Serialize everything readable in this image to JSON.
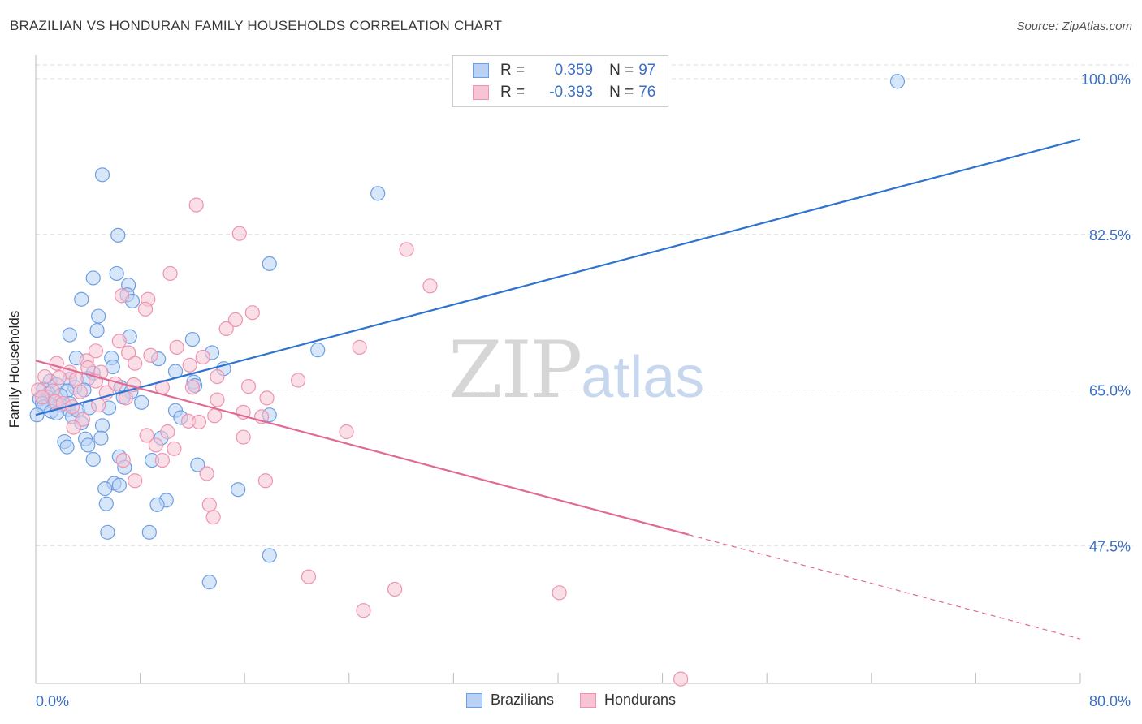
{
  "header": {
    "title": "BRAZILIAN VS HONDURAN FAMILY HOUSEHOLDS CORRELATION CHART",
    "source": "Source: ZipAtlas.com"
  },
  "watermark": {
    "zip": "ZIP",
    "atlas": "atlas"
  },
  "legend": {
    "rows": [
      {
        "r_label": "R =",
        "r_value": "0.359",
        "n_label": "N =",
        "n_value": "97",
        "color": "#6fa3e6"
      },
      {
        "r_label": "R =",
        "r_value": "-0.393",
        "n_label": "N =",
        "n_value": "76",
        "color": "#f08bab"
      }
    ]
  },
  "colors": {
    "blue_fill": "#b8d1f5",
    "blue_stroke": "#6c9fe3",
    "blue_line": "#2f73cf",
    "pink_fill": "#f8c4d4",
    "pink_stroke": "#ee93b1",
    "pink_line": "#e06a93",
    "tick_label": "#3a6fc4",
    "grid": "#dcdcdc"
  },
  "chart_data": {
    "type": "scatter",
    "ylabel": "Family Households",
    "xlim": [
      0,
      80
    ],
    "ylim": [
      33,
      101.5
    ],
    "x_tick_labels": [
      "0.0%",
      "80.0%"
    ],
    "y_ticks": [
      47.5,
      65.0,
      82.5,
      100.0
    ],
    "y_tick_labels": [
      "47.5%",
      "65.0%",
      "82.5%",
      "100.0%"
    ],
    "grid": "horizontal dashed",
    "legend_position": "top-center",
    "series": [
      {
        "name": "Brazilians",
        "r": 0.359,
        "n": 97,
        "trend": {
          "x": [
            0,
            80
          ],
          "y": [
            62.2,
            93.2
          ],
          "dashed_from": null
        },
        "points": [
          [
            5.1,
            89.2
          ],
          [
            66,
            99.7
          ],
          [
            26.2,
            87.1
          ],
          [
            6.3,
            82.4
          ],
          [
            17.9,
            79.2
          ],
          [
            4.4,
            77.6
          ],
          [
            6.2,
            78.1
          ],
          [
            7.1,
            76.8
          ],
          [
            7.0,
            75.7
          ],
          [
            3.5,
            75.2
          ],
          [
            7.4,
            75.0
          ],
          [
            4.8,
            73.3
          ],
          [
            4.7,
            71.7
          ],
          [
            2.6,
            71.2
          ],
          [
            7.2,
            71.0
          ],
          [
            12.0,
            70.7
          ],
          [
            21.6,
            69.5
          ],
          [
            13.5,
            69.2
          ],
          [
            3.1,
            68.6
          ],
          [
            5.8,
            68.6
          ],
          [
            9.4,
            68.5
          ],
          [
            5.9,
            67.6
          ],
          [
            14.4,
            67.4
          ],
          [
            10.7,
            67.1
          ],
          [
            4.4,
            66.9
          ],
          [
            2.6,
            66.2
          ],
          [
            4.0,
            66.3
          ],
          [
            1.1,
            66.0
          ],
          [
            1.6,
            65.6
          ],
          [
            3.0,
            65.3
          ],
          [
            3.7,
            65.0
          ],
          [
            2.4,
            64.9
          ],
          [
            0.6,
            65.1
          ],
          [
            1.0,
            64.6
          ],
          [
            1.9,
            64.4
          ],
          [
            6.5,
            65.3
          ],
          [
            7.3,
            64.8
          ],
          [
            12.1,
            65.9
          ],
          [
            12.2,
            65.5
          ],
          [
            0.3,
            64.0
          ],
          [
            0.9,
            64.2
          ],
          [
            1.4,
            63.8
          ],
          [
            2.6,
            63.5
          ],
          [
            0.5,
            63.5
          ],
          [
            1.9,
            63.3
          ],
          [
            2.5,
            62.8
          ],
          [
            4.1,
            63.0
          ],
          [
            5.6,
            63.0
          ],
          [
            6.7,
            64.2
          ],
          [
            8.1,
            63.6
          ],
          [
            0.6,
            63.1
          ],
          [
            1.2,
            62.6
          ],
          [
            1.6,
            62.4
          ],
          [
            2.8,
            62.0
          ],
          [
            3.2,
            62.7
          ],
          [
            0.1,
            62.2
          ],
          [
            10.7,
            62.7
          ],
          [
            11.1,
            61.9
          ],
          [
            17.9,
            62.2
          ],
          [
            5.1,
            61.0
          ],
          [
            3.5,
            61.3
          ],
          [
            5.0,
            59.6
          ],
          [
            2.2,
            59.2
          ],
          [
            3.8,
            59.5
          ],
          [
            9.6,
            59.6
          ],
          [
            2.4,
            58.6
          ],
          [
            4.0,
            58.8
          ],
          [
            6.4,
            57.5
          ],
          [
            4.4,
            57.2
          ],
          [
            8.9,
            57.1
          ],
          [
            12.4,
            56.6
          ],
          [
            6.8,
            56.3
          ],
          [
            6.0,
            54.5
          ],
          [
            6.4,
            54.3
          ],
          [
            5.3,
            53.9
          ],
          [
            15.5,
            53.8
          ],
          [
            10.0,
            52.6
          ],
          [
            5.4,
            52.2
          ],
          [
            9.3,
            52.1
          ],
          [
            5.5,
            49.0
          ],
          [
            8.7,
            49.0
          ],
          [
            17.9,
            46.4
          ],
          [
            13.3,
            43.4
          ]
        ]
      },
      {
        "name": "Hondurans",
        "r": -0.393,
        "n": 76,
        "trend": {
          "x": [
            0,
            80
          ],
          "y": [
            68.3,
            37.0
          ],
          "dashed_from": 50
        },
        "points": [
          [
            12.3,
            85.8
          ],
          [
            15.6,
            82.6
          ],
          [
            28.4,
            80.8
          ],
          [
            10.3,
            78.1
          ],
          [
            30.2,
            76.7
          ],
          [
            6.6,
            75.6
          ],
          [
            8.6,
            75.2
          ],
          [
            8.4,
            74.1
          ],
          [
            16.6,
            73.7
          ],
          [
            15.3,
            72.9
          ],
          [
            14.6,
            71.9
          ],
          [
            6.4,
            70.5
          ],
          [
            24.8,
            69.8
          ],
          [
            10.8,
            69.8
          ],
          [
            4.6,
            69.4
          ],
          [
            7.1,
            69.2
          ],
          [
            12.8,
            68.7
          ],
          [
            8.8,
            68.9
          ],
          [
            1.6,
            68.0
          ],
          [
            3.9,
            68.3
          ],
          [
            7.6,
            68.0
          ],
          [
            11.8,
            67.8
          ],
          [
            4.0,
            67.5
          ],
          [
            2.6,
            67.0
          ],
          [
            5.0,
            67.0
          ],
          [
            0.7,
            66.5
          ],
          [
            1.8,
            66.4
          ],
          [
            3.1,
            66.2
          ],
          [
            4.6,
            66.0
          ],
          [
            6.1,
            65.7
          ],
          [
            7.5,
            65.6
          ],
          [
            9.7,
            65.3
          ],
          [
            12.0,
            65.3
          ],
          [
            13.9,
            66.5
          ],
          [
            20.1,
            66.1
          ],
          [
            16.3,
            65.4
          ],
          [
            0.2,
            65.0
          ],
          [
            1.3,
            64.9
          ],
          [
            3.4,
            64.8
          ],
          [
            5.4,
            64.7
          ],
          [
            6.9,
            64.1
          ],
          [
            17.7,
            64.1
          ],
          [
            13.9,
            63.9
          ],
          [
            0.5,
            64.2
          ],
          [
            1.5,
            63.7
          ],
          [
            2.1,
            63.5
          ],
          [
            2.8,
            63.1
          ],
          [
            4.8,
            63.3
          ],
          [
            15.9,
            62.5
          ],
          [
            13.7,
            62.1
          ],
          [
            17.3,
            62.0
          ],
          [
            3.6,
            61.7
          ],
          [
            11.7,
            61.5
          ],
          [
            12.5,
            61.4
          ],
          [
            2.9,
            60.8
          ],
          [
            10.1,
            60.3
          ],
          [
            23.8,
            60.3
          ],
          [
            8.5,
            59.9
          ],
          [
            15.9,
            59.7
          ],
          [
            9.2,
            58.8
          ],
          [
            10.6,
            58.4
          ],
          [
            6.7,
            57.1
          ],
          [
            9.7,
            57.1
          ],
          [
            13.1,
            55.6
          ],
          [
            7.6,
            54.8
          ],
          [
            17.6,
            54.8
          ],
          [
            13.3,
            52.1
          ],
          [
            13.6,
            50.7
          ],
          [
            20.9,
            44.0
          ],
          [
            27.5,
            42.6
          ],
          [
            40.1,
            42.2
          ],
          [
            25.1,
            40.2
          ],
          [
            49.4,
            32.5
          ]
        ]
      }
    ]
  }
}
